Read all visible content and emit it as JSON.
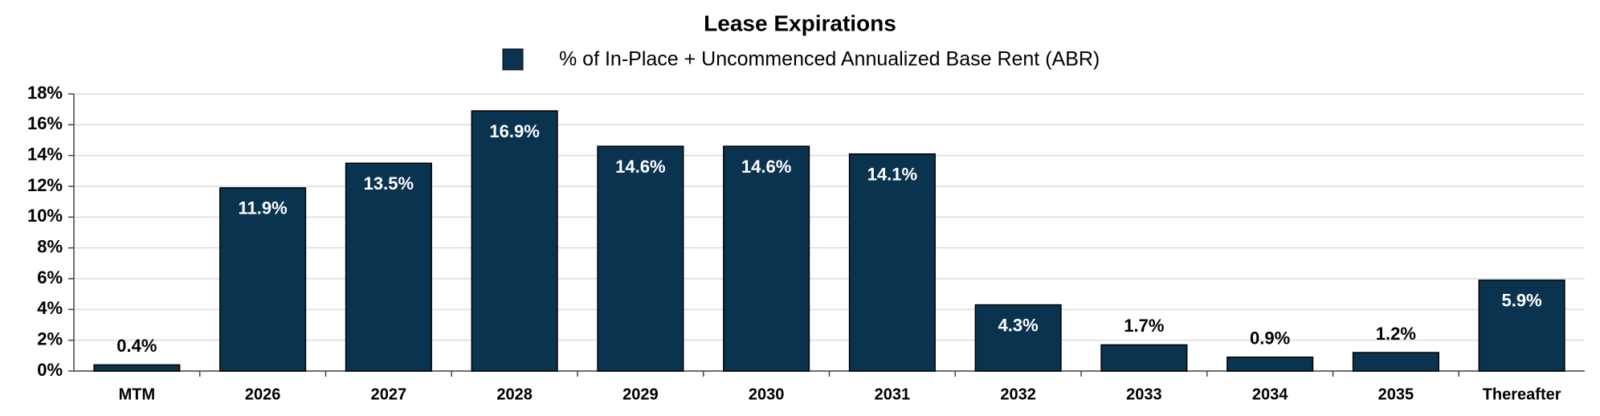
{
  "chart_data": {
    "type": "bar",
    "title": "Lease Expirations",
    "legend": "% of In-Place + Uncommenced Annualized Base Rent (ABR)",
    "categories": [
      "MTM",
      "2026",
      "2027",
      "2028",
      "2029",
      "2030",
      "2031",
      "2032",
      "2033",
      "2034",
      "2035",
      "Thereafter"
    ],
    "values": [
      0.4,
      11.9,
      13.5,
      16.9,
      14.6,
      14.6,
      14.1,
      4.3,
      1.7,
      0.9,
      1.2,
      5.9
    ],
    "value_labels": [
      "0.4%",
      "11.9%",
      "13.5%",
      "16.9%",
      "14.6%",
      "14.6%",
      "14.1%",
      "4.3%",
      "1.7%",
      "0.9%",
      "1.2%",
      "5.9%"
    ],
    "color": "#0a3350",
    "ylim": [
      0,
      18
    ],
    "yticks": [
      {
        "value": 0,
        "label": "0%"
      },
      {
        "value": 2,
        "label": "2%"
      },
      {
        "value": 4,
        "label": "4%"
      },
      {
        "value": 6,
        "label": "6%"
      },
      {
        "value": 8,
        "label": "8%"
      },
      {
        "value": 10,
        "label": "10%"
      },
      {
        "value": 12,
        "label": "12%"
      },
      {
        "value": 14,
        "label": "14%"
      },
      {
        "value": 16,
        "label": "16%"
      },
      {
        "value": 18,
        "label": "18%"
      }
    ],
    "grid": true
  }
}
